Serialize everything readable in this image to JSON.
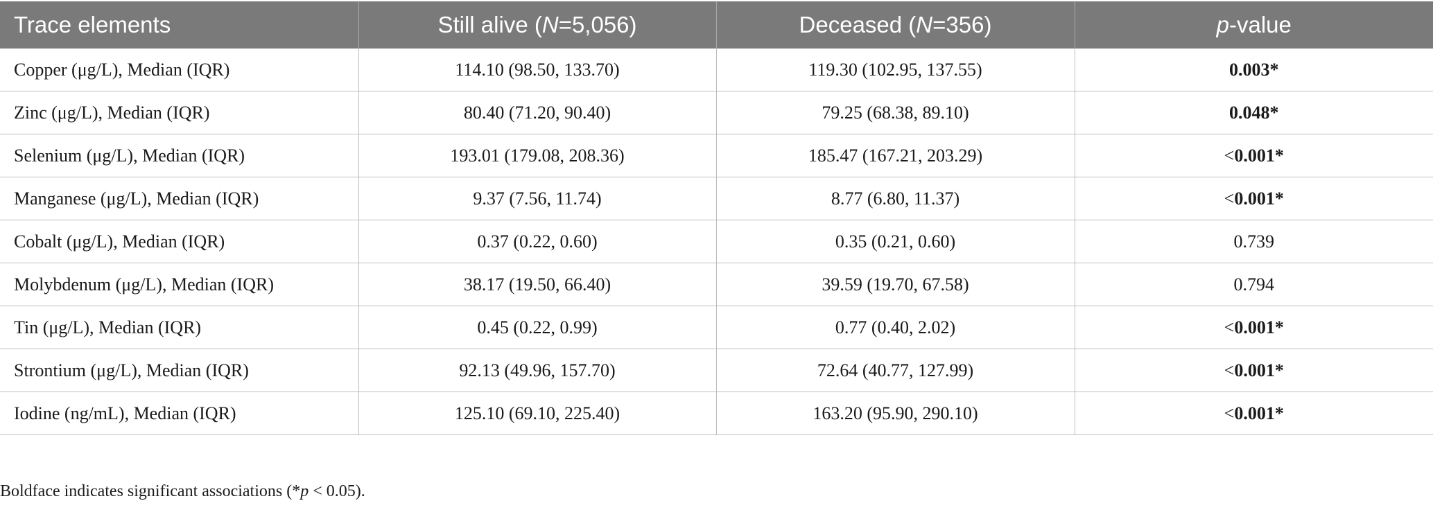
{
  "table": {
    "headers": [
      {
        "text": "Trace elements"
      },
      {
        "pre": "Still alive (",
        "ital": "N",
        "post": "=5,056)"
      },
      {
        "pre": "Deceased (",
        "ital": "N",
        "post": "=356)"
      },
      {
        "pre": "",
        "ital": "p",
        "post": "-value"
      }
    ],
    "rows": [
      {
        "element": "Copper (μg/L), Median (IQR)",
        "alive": "114.10 (98.50, 133.70)",
        "deceased": "119.30 (102.95, 137.55)",
        "p_prefix": "",
        "p_value": "0.003*",
        "significant": true
      },
      {
        "element": "Zinc (μg/L), Median (IQR)",
        "alive": "80.40 (71.20, 90.40)",
        "deceased": "79.25 (68.38, 89.10)",
        "p_prefix": "",
        "p_value": "0.048*",
        "significant": true
      },
      {
        "element": "Selenium (μg/L), Median (IQR)",
        "alive": "193.01 (179.08, 208.36)",
        "deceased": "185.47 (167.21, 203.29)",
        "p_prefix": "<",
        "p_value": "0.001*",
        "significant": true
      },
      {
        "element": "Manganese (μg/L), Median (IQR)",
        "alive": "9.37 (7.56, 11.74)",
        "deceased": "8.77 (6.80, 11.37)",
        "p_prefix": "<",
        "p_value": "0.001*",
        "significant": true
      },
      {
        "element": "Cobalt (μg/L), Median (IQR)",
        "alive": "0.37 (0.22, 0.60)",
        "deceased": "0.35 (0.21, 0.60)",
        "p_prefix": "",
        "p_value": "0.739",
        "significant": false
      },
      {
        "element": "Molybdenum (μg/L), Median (IQR)",
        "alive": "38.17 (19.50, 66.40)",
        "deceased": "39.59 (19.70, 67.58)",
        "p_prefix": "",
        "p_value": "0.794",
        "significant": false
      },
      {
        "element": "Tin (μg/L), Median (IQR)",
        "alive": "0.45 (0.22, 0.99)",
        "deceased": "0.77 (0.40, 2.02)",
        "p_prefix": "<",
        "p_value": "0.001*",
        "significant": true
      },
      {
        "element": "Strontium (μg/L), Median (IQR)",
        "alive": "92.13 (49.96, 157.70)",
        "deceased": "72.64 (40.77, 127.99)",
        "p_prefix": "<",
        "p_value": "0.001*",
        "significant": true
      },
      {
        "element": "Iodine (ng/mL), Median (IQR)",
        "alive": "125.10 (69.10, 225.40)",
        "deceased": "163.20 (95.90, 290.10)",
        "p_prefix": "<",
        "p_value": "0.001*",
        "significant": true
      }
    ]
  },
  "footnote": {
    "pre": "Boldface indicates significant associations (*",
    "ital": "p",
    "post": " < 0.05)."
  },
  "colors": {
    "header_bg": "#7a7a7a",
    "header_text": "#ffffff",
    "grid_line": "#bdbdbd"
  }
}
